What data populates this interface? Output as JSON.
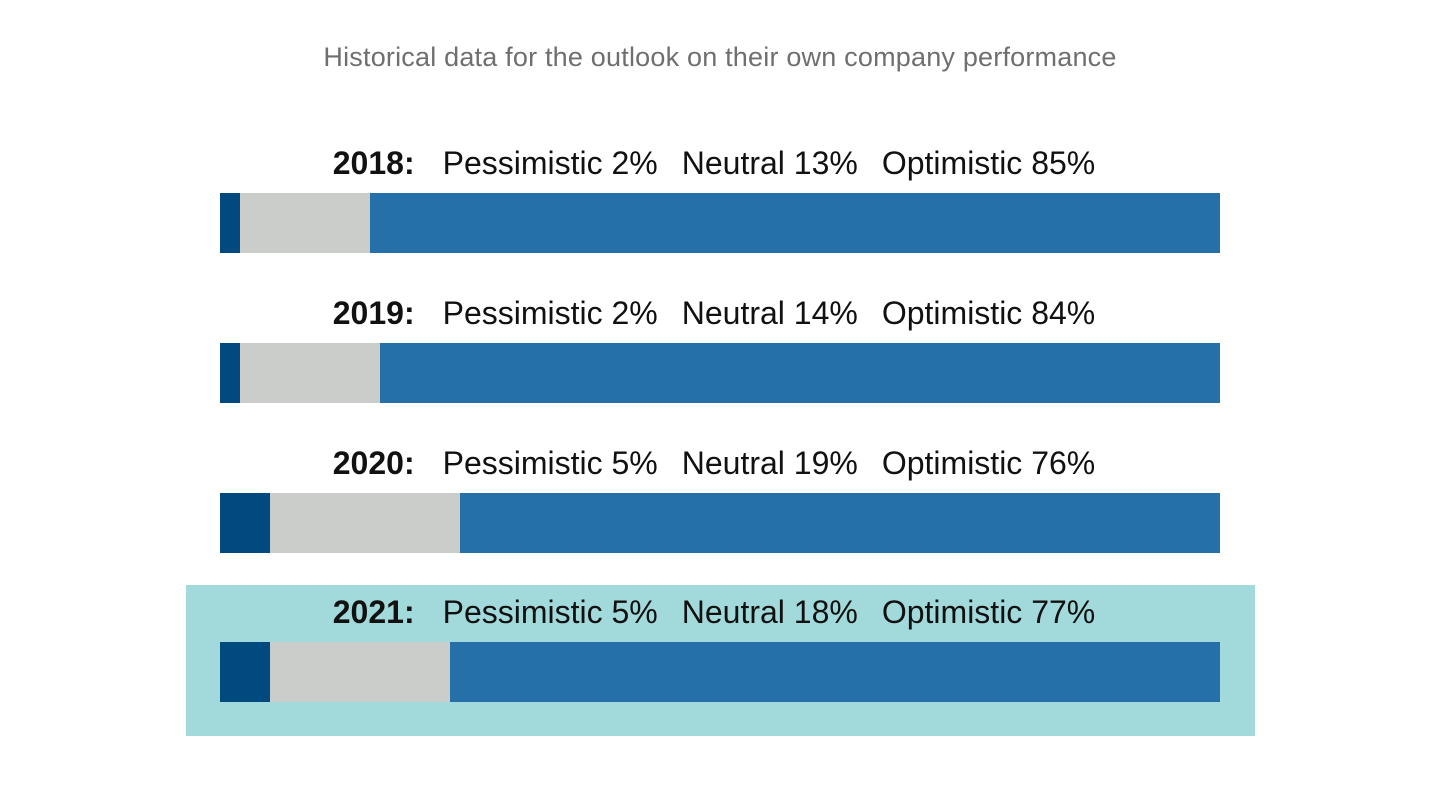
{
  "subtitle": "Historical data for the outlook on their own company performance",
  "colors": {
    "pessimistic": "#004a80",
    "neutral": "#cbcdcb",
    "optimistic": "#2570a8",
    "highlight": "#a2d9da"
  },
  "chart_data": {
    "type": "bar",
    "stacked": true,
    "orientation": "horizontal",
    "title": "",
    "subtitle": "Historical data for the outlook on their own company performance",
    "categories": [
      "2018",
      "2019",
      "2020",
      "2021"
    ],
    "series": [
      {
        "name": "Pessimistic",
        "values": [
          2,
          2,
          5,
          5
        ]
      },
      {
        "name": "Neutral",
        "values": [
          13,
          14,
          19,
          18
        ]
      },
      {
        "name": "Optimistic",
        "values": [
          85,
          84,
          76,
          77
        ]
      }
    ],
    "unit": "%",
    "xlim": [
      0,
      100
    ],
    "highlighted_category": "2021",
    "grid": false,
    "legend": "none"
  },
  "rows": [
    {
      "year": "2018:",
      "pessimistic": "Pessimistic 2%",
      "neutral": "Neutral 13%",
      "optimistic": "Optimistic 85%"
    },
    {
      "year": "2019:",
      "pessimistic": "Pessimistic 2%",
      "neutral": "Neutral 14%",
      "optimistic": "Optimistic 84%"
    },
    {
      "year": "2020:",
      "pessimistic": "Pessimistic 5%",
      "neutral": "Neutral 19%",
      "optimistic": "Optimistic 76%"
    },
    {
      "year": "2021:",
      "pessimistic": "Pessimistic 5%",
      "neutral": "Neutral 18%",
      "optimistic": "Optimistic 77%"
    }
  ]
}
